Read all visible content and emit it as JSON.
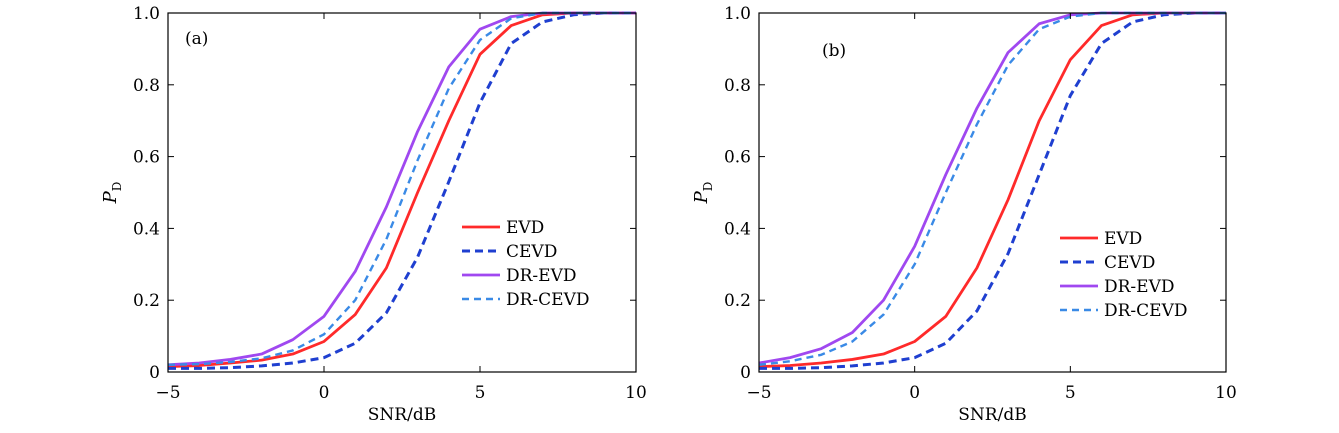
{
  "chart_data": [
    {
      "type": "line",
      "panel_label": "(a)",
      "xlabel": "SNR/dB",
      "ylabel_main": "P",
      "ylabel_sub": "D",
      "xlim": [
        -5,
        10
      ],
      "ylim": [
        0,
        1.0
      ],
      "xticks": [
        -5,
        0,
        5,
        10
      ],
      "xtick_labels": [
        "−5",
        "0",
        "5",
        "10"
      ],
      "yticks": [
        0,
        0.2,
        0.4,
        0.6,
        0.8,
        1.0
      ],
      "ytick_labels": [
        "0",
        "0.2",
        "0.4",
        "0.6",
        "0.8",
        "1.0"
      ],
      "x": [
        -5,
        -4,
        -3,
        -2,
        -1,
        0,
        1,
        2,
        3,
        4,
        5,
        6,
        7,
        8,
        9,
        10
      ],
      "legend_position": "center-right",
      "series": [
        {
          "name": "EVD",
          "color": "#ff2a2a",
          "dash": "solid",
          "values": [
            0.015,
            0.018,
            0.025,
            0.033,
            0.05,
            0.085,
            0.16,
            0.29,
            0.5,
            0.7,
            0.885,
            0.965,
            0.995,
            1.0,
            1.0,
            1.0
          ]
        },
        {
          "name": "CEVD",
          "color": "#1f3fd0",
          "dash": "dashed",
          "values": [
            0.01,
            0.01,
            0.012,
            0.017,
            0.025,
            0.04,
            0.08,
            0.165,
            0.32,
            0.53,
            0.75,
            0.915,
            0.975,
            0.995,
            1.0,
            1.0
          ]
        },
        {
          "name": "DR-EVD",
          "color": "#a048f0",
          "dash": "solid",
          "values": [
            0.02,
            0.025,
            0.035,
            0.05,
            0.09,
            0.155,
            0.28,
            0.46,
            0.67,
            0.85,
            0.955,
            0.99,
            1.0,
            1.0,
            1.0,
            1.0
          ]
        },
        {
          "name": "DR-CEVD",
          "color": "#3a8ae6",
          "dash": "dashed-thin",
          "values": [
            0.02,
            0.022,
            0.028,
            0.038,
            0.06,
            0.105,
            0.2,
            0.37,
            0.59,
            0.79,
            0.925,
            0.985,
            1.0,
            1.0,
            1.0,
            1.0
          ]
        }
      ]
    },
    {
      "type": "line",
      "panel_label": "(b)",
      "xlabel": "SNR/dB",
      "ylabel_main": "P",
      "ylabel_sub": "D",
      "xlim": [
        -5,
        10
      ],
      "ylim": [
        0,
        1.0
      ],
      "xticks": [
        -5,
        0,
        5,
        10
      ],
      "xtick_labels": [
        "−5",
        "0",
        "5",
        "10"
      ],
      "yticks": [
        0,
        0.2,
        0.4,
        0.6,
        0.8,
        1.0
      ],
      "ytick_labels": [
        "0",
        "0.2",
        "0.4",
        "0.6",
        "0.8",
        "1.0"
      ],
      "x": [
        -5,
        -4,
        -3,
        -2,
        -1,
        0,
        1,
        2,
        3,
        4,
        5,
        6,
        7,
        8,
        9,
        10
      ],
      "legend_position": "lower-right",
      "series": [
        {
          "name": "EVD",
          "color": "#ff2a2a",
          "dash": "solid",
          "values": [
            0.015,
            0.018,
            0.025,
            0.035,
            0.05,
            0.085,
            0.155,
            0.29,
            0.48,
            0.7,
            0.87,
            0.965,
            0.995,
            1.0,
            1.0,
            1.0
          ]
        },
        {
          "name": "CEVD",
          "color": "#1f3fd0",
          "dash": "dashed",
          "values": [
            0.01,
            0.01,
            0.012,
            0.017,
            0.025,
            0.04,
            0.08,
            0.17,
            0.33,
            0.55,
            0.77,
            0.915,
            0.975,
            0.995,
            1.0,
            1.0
          ]
        },
        {
          "name": "DR-EVD",
          "color": "#a048f0",
          "dash": "solid",
          "values": [
            0.025,
            0.04,
            0.065,
            0.11,
            0.2,
            0.35,
            0.55,
            0.735,
            0.89,
            0.97,
            0.995,
            1.0,
            1.0,
            1.0,
            1.0,
            1.0
          ]
        },
        {
          "name": "DR-CEVD",
          "color": "#3a8ae6",
          "dash": "dashed-thin",
          "values": [
            0.02,
            0.03,
            0.048,
            0.085,
            0.16,
            0.3,
            0.5,
            0.69,
            0.855,
            0.955,
            0.99,
            1.0,
            1.0,
            1.0,
            1.0,
            1.0
          ]
        }
      ]
    }
  ]
}
